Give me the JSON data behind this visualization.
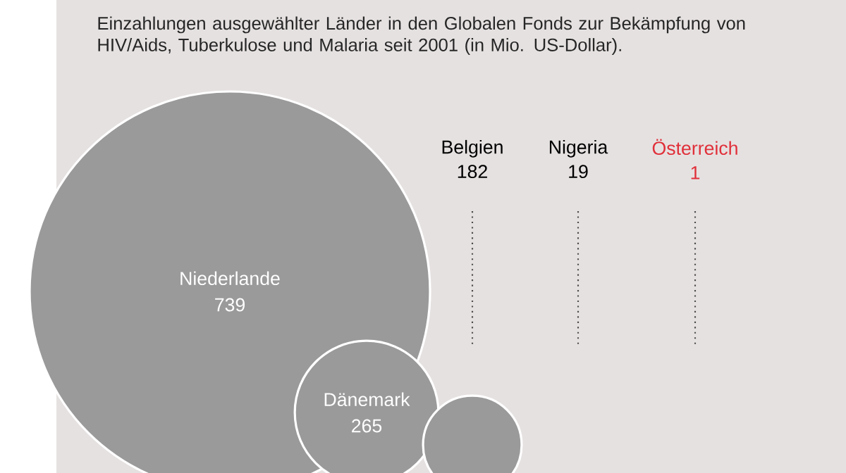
{
  "chart_data": {
    "type": "other",
    "title": "Einzahlungen ausgewählter Länder in den Globalen Fonds zur Bekämpfung von HIV/Aids, Tuberkulose und Malaria seit 2001 (in Mio. US-Dollar).",
    "categories": [
      "Niederlande",
      "Dänemark",
      "Belgien",
      "Nigeria",
      "Österreich"
    ],
    "values": [
      739,
      265,
      182,
      19,
      1
    ],
    "colors": [
      "#9a9a9a",
      "#9a9a9a",
      "#9a9a9a",
      "#9a9a9a",
      "#e0303a"
    ],
    "data_labels": true
  }
}
